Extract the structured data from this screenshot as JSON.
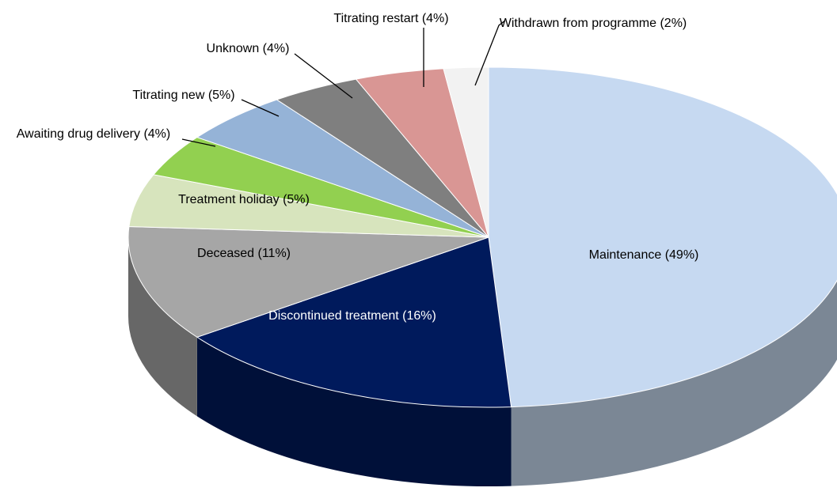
{
  "chart_data": {
    "type": "pie3d",
    "values": [
      49,
      16,
      11,
      5,
      4,
      5,
      4,
      4,
      2
    ],
    "value_labels": [
      "Maintenance (49%)",
      "Discontinued treatment (16%)",
      "Deceased (11%)",
      "Treatment holiday (5%)",
      "Awaiting drug delivery (4%)",
      "Titrating new (5%)",
      "Unknown (4%)",
      "Titrating restart (4%)",
      "Withdrawn from programme (2%)"
    ],
    "colors": [
      "#c6d9f1",
      "#001a5c",
      "#a6a6a6",
      "#d7e4bd",
      "#92d050",
      "#95b3d7",
      "#7f7f7f",
      "#d99694",
      "#f2f2f2"
    ]
  }
}
